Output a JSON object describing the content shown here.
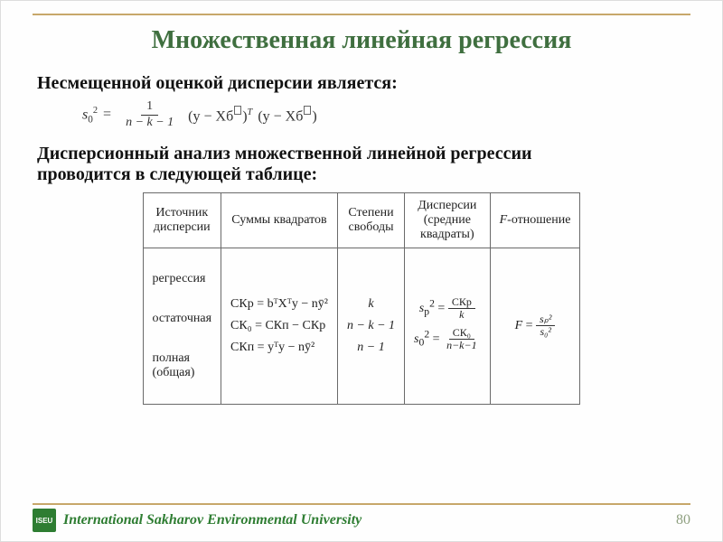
{
  "title": "Множественная линейная регрессия",
  "lead1": "Несмещенной оценкой дисперсии является:",
  "formula": {
    "lhs": "s",
    "lhs_sub": "0",
    "lhs_sup": "2",
    "frac_num": "1",
    "frac_den": "n − k − 1",
    "paren1a": "(y − Xб",
    "paren1b": ")",
    "sup_T": "T",
    "paren2a": "(y − Xб",
    "paren2b": ")"
  },
  "lead2a": "Дисперсионный анализ множественной линейной регрессии",
  "lead2b": "проводится в следующей таблице:",
  "table": {
    "headers": [
      "Источник\nдисперсии",
      "Суммы квадратов",
      "Степени\nсвободы",
      "Дисперсии\n(средние\nквадраты)",
      "F-отношение"
    ],
    "row_sources": [
      "регрессия",
      "остаточная",
      "полная\n(общая)"
    ],
    "row_ss": {
      "reg": "СКр = bᵀXᵀy − nȳ²",
      "res": "СК₀ = СКп − СКр",
      "tot": "СКп = yᵀy − nȳ²"
    },
    "row_df": {
      "reg": "k",
      "res": "n − k − 1",
      "tot": "n − 1"
    },
    "disp_reg": {
      "lhs": "s",
      "lhs_sub": "p",
      "lhs_sup": "2",
      "num": "СКр",
      "den": "k"
    },
    "disp_res": {
      "lhs": "s",
      "lhs_sub": "0",
      "lhs_sup": "2",
      "num": "СК₀",
      "den": "n−k−1"
    },
    "f_ratio": {
      "lhs": "F",
      "num": "sₚ²",
      "den": "s₀²"
    }
  },
  "footer": {
    "logo": "ISEU",
    "university": "International Sakharov Environmental University",
    "page": "80"
  },
  "colors": {
    "rule": "#c7a76a",
    "title": "#3f6f3f",
    "footer_accent": "#2e7d32"
  }
}
